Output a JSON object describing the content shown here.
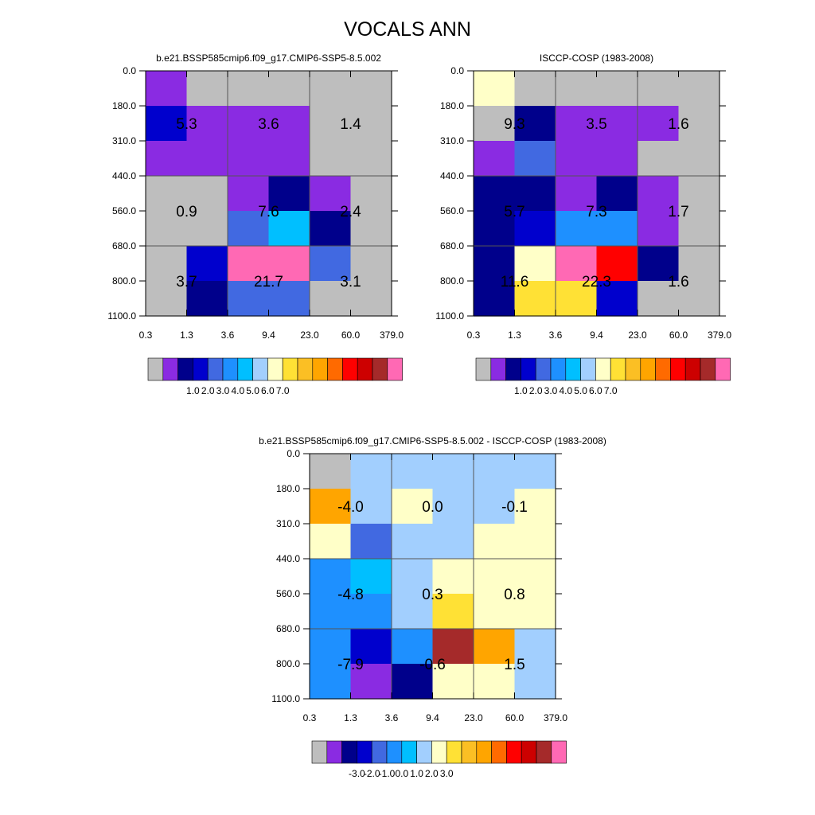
{
  "figure_title": "VOCALS ANN",
  "colors": {
    "gray": "#bebebe",
    "violet": "#8a2be2",
    "navy": "#00008b",
    "blue": "#0000cd",
    "royal": "#4169e1",
    "dodger": "#1e90ff",
    "sky": "#00bfff",
    "lightblue": "#a2cffe",
    "cream": "#ffffc8",
    "gold": "#ffe135",
    "amber": "#fbbf24",
    "orange": "#ffa500",
    "darkorange": "#ff6a00",
    "red": "#ff0000",
    "crimson": "#cd0000",
    "brown": "#a52a2a",
    "pink": "#ff69b4"
  },
  "chart_data": [
    {
      "type": "heatmap",
      "title": "b.e21.BSSP585cmip6.f09_g17.CMIP6-SSP5-8.5.002",
      "x_ticks": [
        "0.3",
        "1.3",
        "3.6",
        "9.4",
        "23.0",
        "60.0",
        "379.0"
      ],
      "y_ticks": [
        "0.0",
        "180.0",
        "310.0",
        "440.0",
        "560.0",
        "680.0",
        "800.0",
        "1100.0"
      ],
      "cells": [
        [
          "violet",
          "gray",
          "gray",
          "gray",
          "gray",
          "gray"
        ],
        [
          "blue",
          "violet",
          "violet",
          "violet",
          "gray",
          "gray"
        ],
        [
          "violet",
          "violet",
          "violet",
          "violet",
          "gray",
          "gray"
        ],
        [
          "gray",
          "gray",
          "violet",
          "navy",
          "violet",
          "gray"
        ],
        [
          "gray",
          "gray",
          "royal",
          "sky",
          "navy",
          "gray"
        ],
        [
          "gray",
          "blue",
          "pink",
          "pink",
          "royal",
          "gray"
        ],
        [
          "gray",
          "navy",
          "royal",
          "royal",
          "gray",
          "gray"
        ]
      ],
      "box_values": [
        [
          "5.3",
          "3.6",
          "1.4"
        ],
        [
          "0.9",
          "7.6",
          "2.4"
        ],
        [
          "3.7",
          "21.7",
          "3.1"
        ]
      ],
      "colorbar": {
        "colors": [
          "gray",
          "violet",
          "navy",
          "blue",
          "royal",
          "dodger",
          "sky",
          "lightblue",
          "cream",
          "gold",
          "amber",
          "orange",
          "darkorange",
          "red",
          "crimson",
          "brown",
          "pink"
        ],
        "labels": [
          "1.0",
          "2.0",
          "3.0",
          "4.0",
          "5.0",
          "6.0",
          "7.0"
        ]
      }
    },
    {
      "type": "heatmap",
      "title": "ISCCP-COSP (1983-2008)",
      "x_ticks": [
        "0.3",
        "1.3",
        "3.6",
        "9.4",
        "23.0",
        "60.0",
        "379.0"
      ],
      "y_ticks": [
        "0.0",
        "180.0",
        "310.0",
        "440.0",
        "560.0",
        "680.0",
        "800.0",
        "1100.0"
      ],
      "cells": [
        [
          "cream",
          "gray",
          "gray",
          "gray",
          "gray",
          "gray"
        ],
        [
          "gray",
          "navy",
          "violet",
          "violet",
          "violet",
          "gray"
        ],
        [
          "violet",
          "royal",
          "violet",
          "violet",
          "gray",
          "gray"
        ],
        [
          "navy",
          "navy",
          "violet",
          "navy",
          "violet",
          "gray"
        ],
        [
          "navy",
          "blue",
          "dodger",
          "dodger",
          "violet",
          "gray"
        ],
        [
          "navy",
          "cream",
          "pink",
          "red",
          "navy",
          "gray"
        ],
        [
          "navy",
          "gold",
          "gold",
          "blue",
          "gray",
          "gray"
        ]
      ],
      "box_values": [
        [
          "9.3",
          "3.5",
          "1.6"
        ],
        [
          "5.7",
          "7.3",
          "1.7"
        ],
        [
          "11.6",
          "22.3",
          "1.6"
        ]
      ],
      "colorbar": {
        "colors": [
          "gray",
          "violet",
          "navy",
          "blue",
          "royal",
          "dodger",
          "sky",
          "lightblue",
          "cream",
          "gold",
          "amber",
          "orange",
          "darkorange",
          "red",
          "crimson",
          "brown",
          "pink"
        ],
        "labels": [
          "1.0",
          "2.0",
          "3.0",
          "4.0",
          "5.0",
          "6.0",
          "7.0"
        ]
      }
    },
    {
      "type": "heatmap",
      "title": "b.e21.BSSP585cmip6.f09_g17.CMIP6-SSP5-8.5.002 - ISCCP-COSP (1983-2008)",
      "x_ticks": [
        "0.3",
        "1.3",
        "3.6",
        "9.4",
        "23.0",
        "60.0",
        "379.0"
      ],
      "y_ticks": [
        "0.0",
        "180.0",
        "310.0",
        "440.0",
        "560.0",
        "680.0",
        "800.0",
        "1100.0"
      ],
      "cells": [
        [
          "gray",
          "lightblue",
          "lightblue",
          "lightblue",
          "lightblue",
          "lightblue"
        ],
        [
          "orange",
          "lightblue",
          "cream",
          "lightblue",
          "lightblue",
          "cream"
        ],
        [
          "cream",
          "royal",
          "lightblue",
          "lightblue",
          "cream",
          "cream"
        ],
        [
          "dodger",
          "sky",
          "lightblue",
          "cream",
          "cream",
          "cream"
        ],
        [
          "dodger",
          "dodger",
          "lightblue",
          "gold",
          "cream",
          "cream"
        ],
        [
          "dodger",
          "blue",
          "dodger",
          "brown",
          "orange",
          "lightblue"
        ],
        [
          "dodger",
          "violet",
          "navy",
          "cream",
          "cream",
          "lightblue"
        ]
      ],
      "box_values": [
        [
          "-4.0",
          "0.0",
          "-0.1"
        ],
        [
          "-4.8",
          "0.3",
          "0.8"
        ],
        [
          "-7.9",
          "-0.6",
          "1.5"
        ]
      ],
      "colorbar": {
        "colors": [
          "gray",
          "violet",
          "navy",
          "blue",
          "royal",
          "dodger",
          "sky",
          "lightblue",
          "cream",
          "gold",
          "amber",
          "orange",
          "darkorange",
          "red",
          "crimson",
          "brown",
          "pink"
        ],
        "labels": [
          "-3.0",
          "-2.0",
          "-1.0",
          "0.0",
          "1.0",
          "2.0",
          "3.0"
        ]
      }
    }
  ]
}
